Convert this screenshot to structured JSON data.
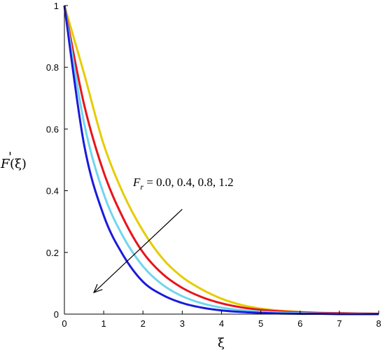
{
  "chart_data": {
    "type": "line",
    "xlabel": "ξ",
    "ylabel_main": "F",
    "ylabel_prime": "'",
    "ylabel_arg": "(ξ)",
    "xlim": [
      0,
      8
    ],
    "ylim": [
      0,
      1
    ],
    "xticks": [
      "0",
      "1",
      "2",
      "3",
      "4",
      "5",
      "6",
      "7",
      "8"
    ],
    "yticks": [
      "0",
      "0.2",
      "0.4",
      "0.6",
      "0.8",
      "1"
    ],
    "grid": false,
    "annotation": {
      "symbol": "F",
      "subscript": "r",
      "text": " = 0.0, 0.4, 0.8, 1.2",
      "arrow_from": [
        3.0,
        0.34
      ],
      "arrow_to": [
        0.75,
        0.07
      ]
    },
    "series": [
      {
        "color": "#e6cc00",
        "x": [
          0,
          0.5,
          1,
          1.5,
          2,
          2.5,
          3,
          3.5,
          4,
          4.5,
          5,
          5.5,
          6,
          6.5,
          7,
          7.5,
          8
        ],
        "y": [
          1,
          0.78,
          0.55,
          0.39,
          0.27,
          0.18,
          0.12,
          0.08,
          0.05,
          0.03,
          0.018,
          0.011,
          0.007,
          0.004,
          0.003,
          0.002,
          0.001
        ]
      },
      {
        "color": "#e8141a",
        "x": [
          0,
          0.5,
          1,
          1.5,
          2,
          2.5,
          3,
          3.5,
          4,
          4.5,
          5,
          5.5,
          6,
          6.5,
          7,
          7.5,
          8
        ],
        "y": [
          1,
          0.68,
          0.46,
          0.31,
          0.2,
          0.13,
          0.085,
          0.055,
          0.035,
          0.022,
          0.014,
          0.009,
          0.006,
          0.004,
          0.003,
          0.002,
          0.001
        ]
      },
      {
        "color": "#6ed6ee",
        "x": [
          0,
          0.5,
          1,
          1.5,
          2,
          2.5,
          3,
          3.5,
          4,
          4.5,
          5,
          5.5,
          6,
          6.5,
          7,
          7.5,
          8
        ],
        "y": [
          1,
          0.62,
          0.39,
          0.25,
          0.155,
          0.095,
          0.058,
          0.035,
          0.021,
          0.013,
          0.008,
          0.005,
          0.003,
          0.002,
          0.001,
          0.001,
          0
        ]
      },
      {
        "color": "#1a1adb",
        "x": [
          0,
          0.5,
          1,
          1.5,
          2,
          2.5,
          3,
          3.5,
          4,
          4.5,
          5,
          5.5,
          6,
          6.5,
          7,
          7.5,
          8
        ],
        "y": [
          1,
          0.55,
          0.32,
          0.19,
          0.105,
          0.062,
          0.036,
          0.021,
          0.012,
          0.007,
          0.004,
          0.002,
          0.001,
          0.001,
          0,
          0,
          0
        ]
      }
    ]
  }
}
